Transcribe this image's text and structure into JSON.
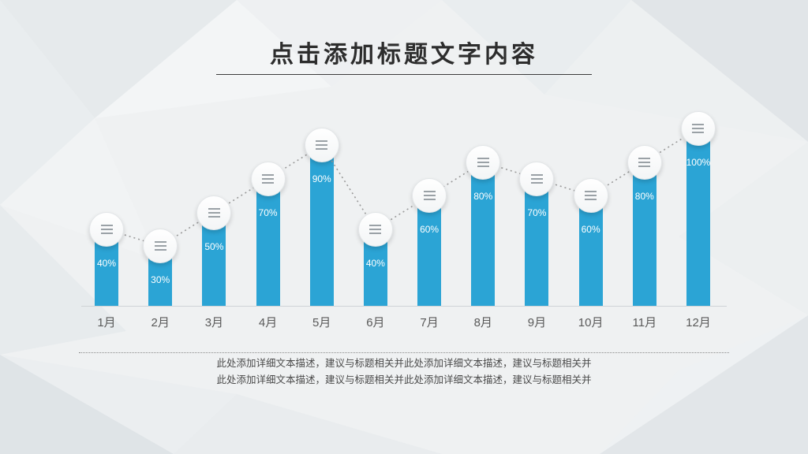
{
  "slide": {
    "title": "点击添加标题文字内容",
    "description_line1": "此处添加详细文本描述，建议与标题相关并此处添加详细文本描述，建议与标题相关并",
    "description_line2": "此处添加详细文本描述，建议与标题相关并此处添加详细文本描述，建议与标题相关并"
  },
  "colors": {
    "bar": "#2ba4d5",
    "connector": "#9a9a9a",
    "title": "#2d2d2d"
  },
  "chart_data": {
    "type": "bar",
    "title": "",
    "xlabel": "",
    "ylabel": "",
    "categories": [
      "1月",
      "2月",
      "3月",
      "4月",
      "5月",
      "6月",
      "7月",
      "8月",
      "9月",
      "10月",
      "11月",
      "12月"
    ],
    "values": [
      40,
      30,
      50,
      70,
      90,
      40,
      60,
      80,
      70,
      60,
      80,
      100
    ],
    "value_labels": [
      "40%",
      "30%",
      "50%",
      "70%",
      "90%",
      "40%",
      "60%",
      "80%",
      "70%",
      "60%",
      "80%",
      "100%"
    ],
    "ylim": [
      0,
      100
    ],
    "grid": false,
    "legend": "none",
    "marker": "white-circle-with-menu-icon",
    "connector_style": "dotted-line-through-markers"
  }
}
